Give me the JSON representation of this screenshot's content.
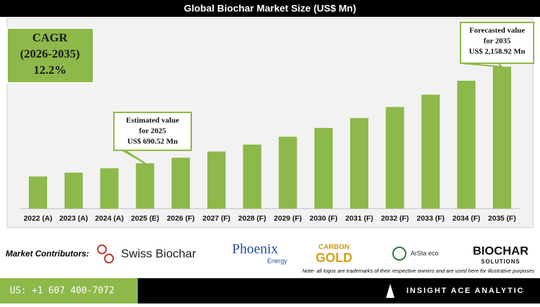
{
  "chart_data": {
    "type": "bar",
    "title": "Global Biochar Market Size (US$ Mn)",
    "categories": [
      "2022 (A)",
      "2023 (A)",
      "2024 (A)",
      "2025 (E)",
      "2026 (F)",
      "2027 (F)",
      "2028 (F)",
      "2029 (F)",
      "2030 (F)",
      "2031 (F)",
      "2032 (F)",
      "2033 (F)",
      "2034 (F)",
      "2035 (F)"
    ],
    "values": [
      489,
      548,
      615,
      690.52,
      775,
      869,
      975,
      1094,
      1228,
      1378,
      1546,
      1734,
      1946,
      2158.92
    ],
    "color": "#8db84a",
    "annotations": [
      {
        "lines": [
          "Estimated value",
          "for 2025",
          "US$ 690.52 Mn"
        ]
      },
      {
        "lines": [
          "Forecasted value",
          "for 2035",
          "US$ 2,158.92 Mn"
        ]
      }
    ]
  },
  "cagr": {
    "lines": [
      "CAGR",
      "(2026-2035)",
      "12.2%"
    ]
  },
  "contributors": {
    "label": "Market Contributors:",
    "logos": [
      "Swiss Biochar",
      "Phoenix",
      "Energy",
      "CARBON",
      "GOLD",
      "ArSta eco",
      "BIOCHAR",
      "SOLUTIONS"
    ]
  },
  "note": "Note- all logos are trademarks of their respective owners and are used here for illustrative purposes",
  "footer": {
    "phone": "US: +1 607 400-7072",
    "brand": "INSIGHT ACE ANALYTIC"
  }
}
